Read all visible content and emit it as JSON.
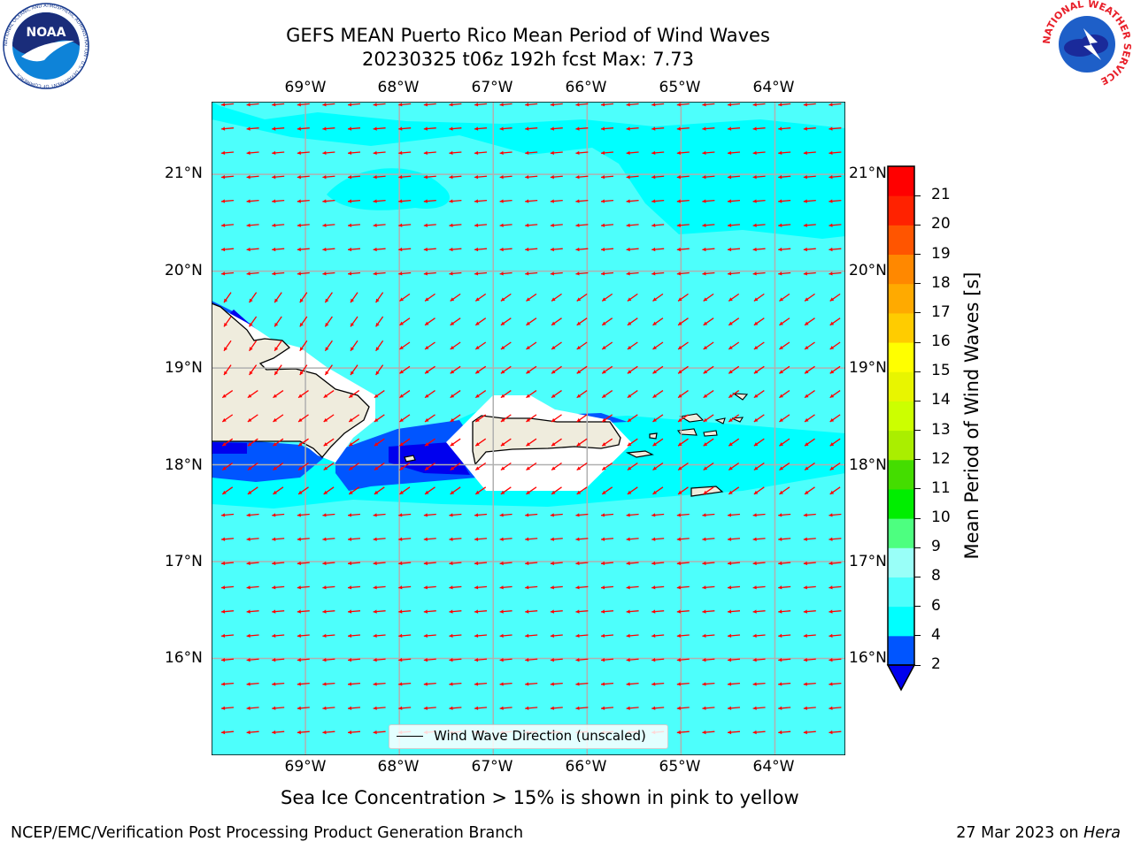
{
  "header": {
    "title_line1": "GEFS MEAN Puerto Rico Mean Period of Wind Waves",
    "title_line2": "20230325 t06z 192h fcst   Max: 7.73",
    "noaa_logo": {
      "center_text": "NOAA",
      "ring_text": "NATIONAL OCEANIC AND ATMOSPHERIC ADMINISTRATION · U.S. DEPARTMENT OF COMMERCE"
    },
    "nws_logo": {
      "ring_text": "NATIONAL WEATHER SERVICE"
    }
  },
  "map": {
    "lon_labels": [
      "69°W",
      "68°W",
      "67°W",
      "66°W",
      "65°W",
      "64°W"
    ],
    "lat_labels": [
      "21°N",
      "20°N",
      "19°N",
      "18°N",
      "17°N",
      "16°N"
    ],
    "lon_range": [
      -70.0,
      -63.25
    ],
    "lat_range": [
      15.0,
      21.75
    ],
    "grid": true,
    "ocean_color": "#4dfffc",
    "land_color": "#efecdd",
    "arrow_color": "#ff0000",
    "legend": {
      "label": "Wind Wave Direction (unscaled)",
      "placement": "bottom-center"
    }
  },
  "colorbar": {
    "label": "Mean Period of Wind Waves [s]",
    "ticks": [
      "2",
      "4",
      "6",
      "8",
      "9",
      "10",
      "11",
      "12",
      "13",
      "14",
      "15",
      "16",
      "17",
      "18",
      "19",
      "20",
      "21"
    ],
    "colors": [
      "#0055ff",
      "#00ffff",
      "#4dfffc",
      "#99fff8",
      "#4dff80",
      "#00ee00",
      "#44dd00",
      "#aaee00",
      "#ccff00",
      "#e8f500",
      "#ffff00",
      "#ffcc00",
      "#ffaa00",
      "#ff8800",
      "#ff5500",
      "#ff2200",
      "#ff0000"
    ],
    "under_color": "#0000ee"
  },
  "caption": "Sea Ice Concentration > 15% is shown in pink to yellow",
  "footer": {
    "left": "NCEP/EMC/Verification Post Processing Product Generation Branch",
    "right_prefix": "27 Mar 2023 on ",
    "right_host": "Hera"
  }
}
